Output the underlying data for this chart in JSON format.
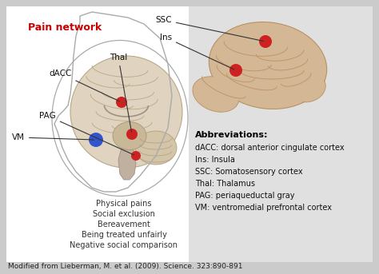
{
  "background_color": "#cbcbcb",
  "white_panel_color": "#ffffff",
  "gray_panel_color": "#e0e0e0",
  "title": "Pain network",
  "title_color": "#cc0000",
  "citation": "Modified from Lieberman, M. et al. (2009). Science. 323:890-891",
  "abbreviations_title": "Abbreviations:",
  "abbreviations": [
    "dACC: dorsal anterior cingulate cortex",
    "Ins: Insula",
    "SSC: Somatosensory cortex",
    "Thal: Thalamus",
    "PAG: periaqueductal gray",
    "VM: ventromedial prefrontal cortex"
  ],
  "social_pains": [
    "Physical pains",
    "Social exclusion",
    "Bereavement",
    "Being treated unfairly",
    "Negative social comparison"
  ],
  "brain_color": "#d4b896",
  "brain_edge_color": "#b89060",
  "brain_gyri_color": "#c0956a",
  "head_color": "#e8e0d4",
  "head_edge_color": "#aaaaaa",
  "sagittal_brain_color": "#ddd0bc",
  "sagittal_brain_edge": "#b0a090",
  "red_dot_color": "#cc2222",
  "blue_dot_color": "#3355cc",
  "label_color": "#111111",
  "arrow_color": "#333333"
}
